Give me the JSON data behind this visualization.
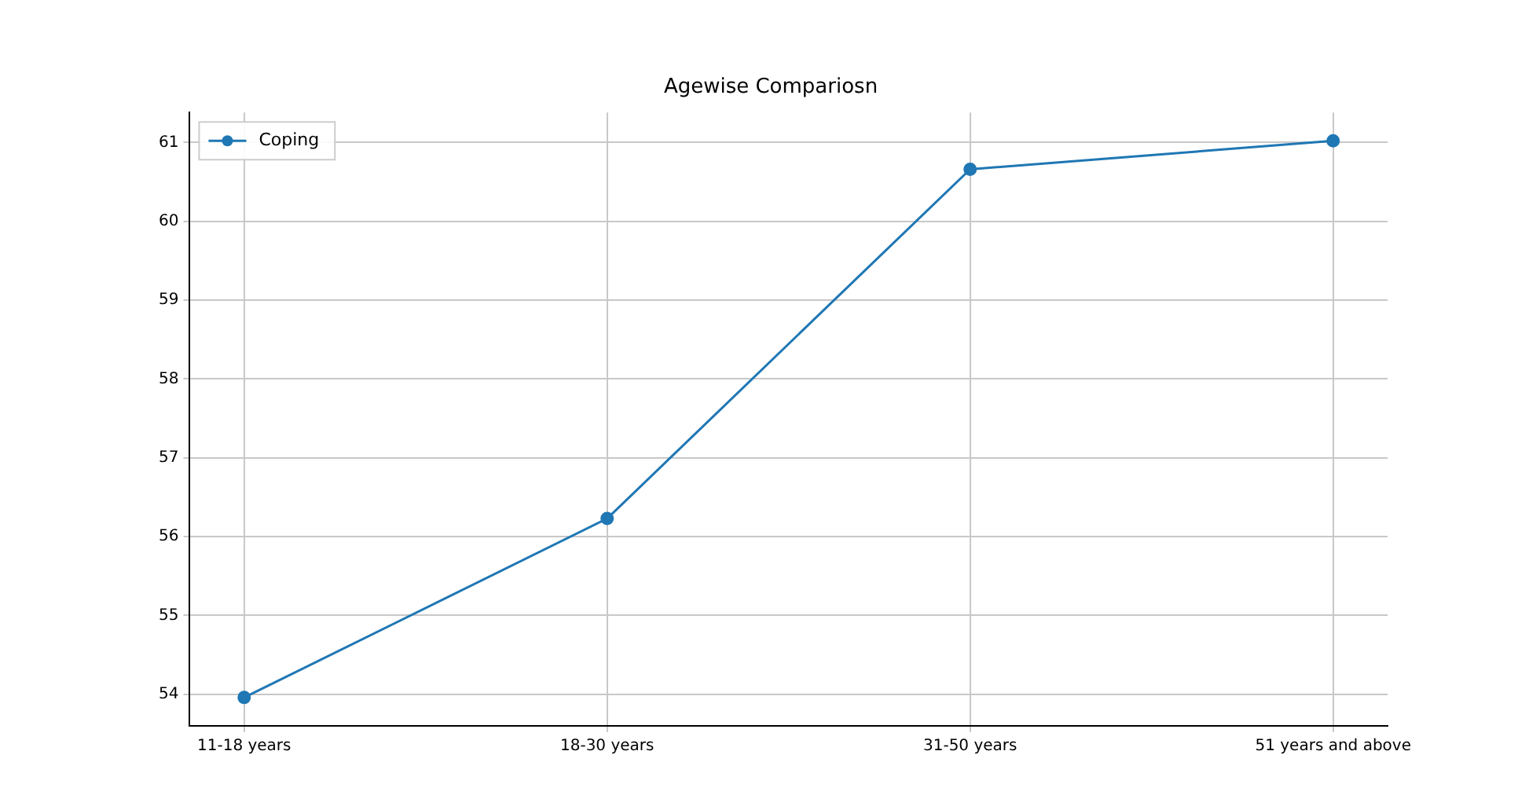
{
  "chart_data": {
    "type": "line",
    "title": "Agewise Compariosn",
    "categories": [
      "11-18 years",
      "18-30 years",
      "31-50 years",
      "51 years and above"
    ],
    "series": [
      {
        "name": "Coping",
        "color": "#1f77b4",
        "values": [
          53.96,
          56.23,
          60.66,
          61.02
        ]
      }
    ],
    "ylim": [
      53.6,
      61.38
    ],
    "yticks": [
      54,
      55,
      56,
      57,
      58,
      59,
      60,
      61
    ],
    "grid": true,
    "legend": "top left",
    "marker": "circle",
    "line_style": "solid"
  }
}
